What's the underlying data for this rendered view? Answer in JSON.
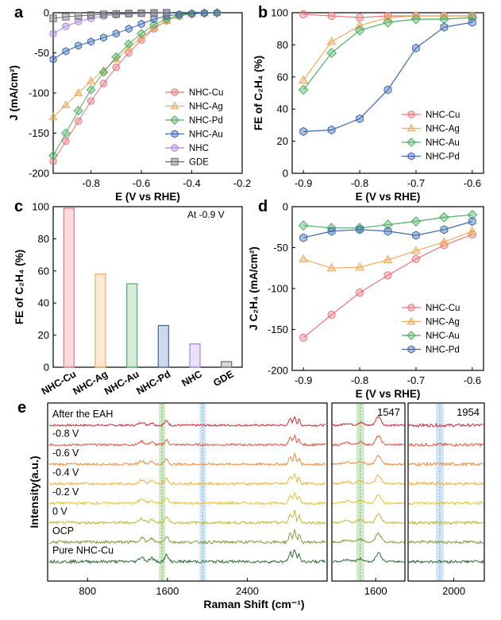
{
  "colors": {
    "cu": "#e8767a",
    "ag": "#f0a85c",
    "pd": "#4fae63",
    "au": "#3a67ad",
    "nhc": "#a886d8",
    "gde": "#6b6b6b"
  },
  "panel_letters": [
    "a",
    "b",
    "c",
    "d",
    "e"
  ],
  "chart_data": [
    {
      "id": "a",
      "type": "line",
      "xlabel": "E (V vs RHE)",
      "ylabel": "J (mA/cm²)",
      "xlim": [
        -0.95,
        -0.2
      ],
      "ylim": [
        -200,
        0
      ],
      "xticks": [
        -0.8,
        -0.6,
        -0.4,
        -0.2
      ],
      "xtick_labels": [
        "-0.8",
        "-0.6",
        "-0.4",
        "-0.2"
      ],
      "yticks": [
        -200,
        -150,
        -100,
        -50,
        0
      ],
      "ytick_labels": [
        "-200",
        "-150",
        "-100",
        "-50",
        "0"
      ],
      "legend": "center-right",
      "series": [
        {
          "name": "NHC-Cu",
          "color_key": "cu",
          "marker": "circle",
          "x": [
            -0.95,
            -0.9,
            -0.85,
            -0.8,
            -0.75,
            -0.7,
            -0.65,
            -0.6,
            -0.55,
            -0.5,
            -0.45,
            -0.4,
            -0.35,
            -0.3
          ],
          "y": [
            -185,
            -160,
            -135,
            -110,
            -88,
            -68,
            -50,
            -34,
            -20,
            -10,
            -4,
            -1.5,
            -0.5,
            -0.2
          ]
        },
        {
          "name": "NHC-Ag",
          "color_key": "ag",
          "marker": "triangle",
          "x": [
            -0.95,
            -0.9,
            -0.85,
            -0.8,
            -0.75,
            -0.7,
            -0.65,
            -0.6,
            -0.55,
            -0.5,
            -0.45,
            -0.4,
            -0.35,
            -0.3
          ],
          "y": [
            -130,
            -115,
            -100,
            -85,
            -72,
            -58,
            -44,
            -31,
            -19,
            -10,
            -4,
            -1.5,
            -0.5,
            -0.2
          ]
        },
        {
          "name": "NHC-Pd",
          "color_key": "pd",
          "marker": "diamond",
          "x": [
            -0.95,
            -0.9,
            -0.85,
            -0.8,
            -0.75,
            -0.7,
            -0.65,
            -0.6,
            -0.55,
            -0.5,
            -0.45,
            -0.4,
            -0.35,
            -0.3
          ],
          "y": [
            -178,
            -150,
            -122,
            -96,
            -74,
            -55,
            -39,
            -26,
            -15,
            -8,
            -3.5,
            -1.5,
            -0.5,
            -0.2
          ]
        },
        {
          "name": "NHC-Au",
          "color_key": "au",
          "marker": "hexagon",
          "x": [
            -0.95,
            -0.9,
            -0.85,
            -0.8,
            -0.75,
            -0.7,
            -0.65,
            -0.6,
            -0.55,
            -0.5,
            -0.45,
            -0.4,
            -0.35,
            -0.3
          ],
          "y": [
            -58,
            -48,
            -41,
            -36,
            -31,
            -26,
            -20,
            -14,
            -8,
            -4,
            -2,
            -1,
            -0.4,
            -0.1
          ]
        },
        {
          "name": "NHC",
          "color_key": "nhc",
          "marker": "circle",
          "x": [
            -0.95,
            -0.9,
            -0.85,
            -0.8,
            -0.75,
            -0.7,
            -0.65,
            -0.6,
            -0.55,
            -0.5
          ],
          "y": [
            -26,
            -17,
            -11,
            -7,
            -4,
            -2.5,
            -1.5,
            -0.8,
            -0.4,
            -0.2
          ]
        },
        {
          "name": "GDE",
          "color_key": "gde",
          "marker": "square",
          "x": [
            -0.95,
            -0.9,
            -0.85,
            -0.8,
            -0.75,
            -0.7,
            -0.65,
            -0.6,
            -0.55,
            -0.5
          ],
          "y": [
            -7,
            -5,
            -4,
            -3,
            -2,
            -1.5,
            -1,
            -0.6,
            -0.3,
            -0.1
          ]
        }
      ]
    },
    {
      "id": "b",
      "type": "line",
      "xlabel": "E (V vs RHE)",
      "ylabel": "FE of C₂H₄ (%)",
      "xlim": [
        -0.92,
        -0.58
      ],
      "ylim": [
        0,
        100
      ],
      "xticks": [
        -0.9,
        -0.8,
        -0.7,
        -0.6
      ],
      "xtick_labels": [
        "-0.9",
        "-0.8",
        "-0.7",
        "-0.6"
      ],
      "yticks": [
        0,
        20,
        40,
        60,
        80,
        100
      ],
      "ytick_labels": [
        "0",
        "20",
        "40",
        "60",
        "80",
        "100"
      ],
      "legend": "center-right",
      "x": [
        -0.9,
        -0.85,
        -0.8,
        -0.75,
        -0.7,
        -0.65,
        -0.6
      ],
      "series": [
        {
          "name": "NHC-Cu",
          "color_key": "cu",
          "marker": "circle",
          "values": [
            99,
            98,
            97,
            98,
            98,
            98,
            98
          ]
        },
        {
          "name": "NHC-Ag",
          "color_key": "ag",
          "marker": "triangle",
          "values": [
            58,
            82,
            92,
            97,
            98,
            98,
            98
          ]
        },
        {
          "name": "NHC-Au",
          "color_key": "pd",
          "marker": "diamond",
          "values": [
            52,
            75,
            89,
            94,
            96,
            96,
            97
          ]
        },
        {
          "name": "NHC-Pd",
          "color_key": "au",
          "marker": "hexagon",
          "values": [
            26,
            27,
            34,
            52,
            78,
            91,
            94
          ]
        }
      ]
    },
    {
      "id": "c",
      "type": "bar",
      "ylabel": "FE of C₂H₄ (%)",
      "annotation": "At -0.9 V",
      "ylim": [
        0,
        100
      ],
      "yticks": [
        0,
        20,
        40,
        60,
        80,
        100
      ],
      "ytick_labels": [
        "0",
        "20",
        "40",
        "60",
        "80",
        "100"
      ],
      "categories": [
        "NHC-Cu",
        "NHC-Ag",
        "NHC-Au",
        "NHC-Pd",
        "NHC",
        "GDE"
      ],
      "color_keys": [
        "cu",
        "ag",
        "pd",
        "au",
        "nhc",
        "gde"
      ],
      "values": [
        99,
        58,
        52,
        26,
        14.5,
        3.5
      ]
    },
    {
      "id": "d",
      "type": "line",
      "xlabel": "E (V vs RHE)",
      "ylabel": "J C₂H₄ (mA/cm²)",
      "xlim": [
        -0.92,
        -0.58
      ],
      "ylim": [
        -200,
        0
      ],
      "xticks": [
        -0.9,
        -0.8,
        -0.7,
        -0.6
      ],
      "xtick_labels": [
        "-0.9",
        "-0.8",
        "-0.7",
        "-0.6"
      ],
      "yticks": [
        -200,
        -150,
        -100,
        -50,
        0
      ],
      "ytick_labels": [
        "-200",
        "-150",
        "-100",
        "-50",
        "0"
      ],
      "legend": "bottom-right",
      "x": [
        -0.9,
        -0.85,
        -0.8,
        -0.75,
        -0.7,
        -0.65,
        -0.6
      ],
      "series": [
        {
          "name": "NHC-Cu",
          "color_key": "cu",
          "marker": "circle",
          "values": [
            -160,
            -132,
            -105,
            -84,
            -64,
            -47,
            -34
          ]
        },
        {
          "name": "NHC-Ag",
          "color_key": "ag",
          "marker": "triangle",
          "values": [
            -64,
            -75,
            -74,
            -65,
            -54,
            -43,
            -30
          ]
        },
        {
          "name": "NHC-Au",
          "color_key": "pd",
          "marker": "diamond",
          "values": [
            -23,
            -26,
            -26,
            -22,
            -18,
            -13,
            -10
          ]
        },
        {
          "name": "NHC-Pd",
          "color_key": "au",
          "marker": "hexagon",
          "values": [
            -38,
            -30,
            -28,
            -30,
            -35,
            -28,
            -18
          ]
        }
      ]
    },
    {
      "id": "e",
      "type": "line",
      "xlabel": "Raman Shift (cm⁻¹)",
      "ylabel": "Intensity(a.u.)",
      "traces": [
        {
          "label": "After the EAH",
          "color": "#d7262e"
        },
        {
          "label": "-0.8 V",
          "color": "#e9543b"
        },
        {
          "label": "-0.6 V",
          "color": "#ef8b3c"
        },
        {
          "label": "-0.4 V",
          "color": "#f0b13a"
        },
        {
          "label": "-0.2 V",
          "color": "#e3c23a"
        },
        {
          "label": "0 V",
          "color": "#bcb83c"
        },
        {
          "label": "OCP",
          "color": "#7f9a3e"
        },
        {
          "label": "Pure NHC-Cu",
          "color": "#2f6b3a"
        }
      ],
      "panels": [
        {
          "xlim": [
            400,
            3200
          ],
          "xticks": [
            800,
            1600,
            2400
          ],
          "xtick_labels": [
            "800",
            "1600",
            "2400"
          ],
          "bands": [
            {
              "x": 1547,
              "color": "#7fbf6a"
            },
            {
              "x": 1954,
              "color": "#7fb7e0"
            }
          ]
        },
        {
          "xlim": [
            1450,
            1700
          ],
          "xticks": [
            1600
          ],
          "xtick_labels": [
            "1600"
          ],
          "annotation": "1547",
          "bands": [
            {
              "x": 1547,
              "color": "#7fbf6a"
            }
          ]
        },
        {
          "xlim": [
            1850,
            2100
          ],
          "xticks": [
            2000
          ],
          "xtick_labels": [
            "2000"
          ],
          "annotation": "1954",
          "bands": [
            {
              "x": 1954,
              "color": "#7fb7e0"
            }
          ]
        }
      ]
    }
  ]
}
